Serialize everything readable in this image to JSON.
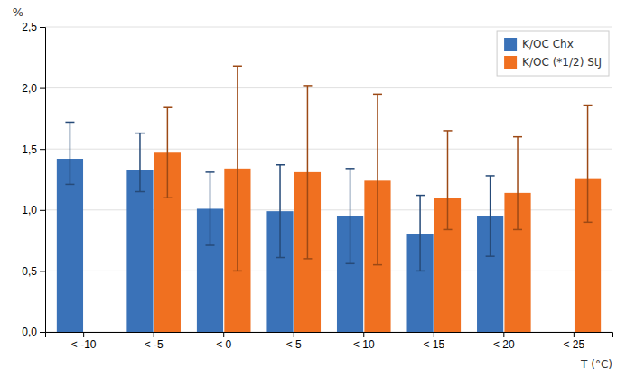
{
  "chart_data": {
    "type": "bar",
    "categories": [
      "< -10",
      "< -5",
      "< 0",
      "< 5",
      "< 10",
      "< 15",
      "< 20",
      "< 25"
    ],
    "series": [
      {
        "name": "K/OC Chx",
        "color": "#3a72b8",
        "values": [
          1.42,
          1.33,
          1.01,
          0.99,
          0.95,
          0.8,
          0.95,
          null
        ],
        "err_lower": [
          0.21,
          0.18,
          0.3,
          0.38,
          0.39,
          0.3,
          0.33,
          0
        ],
        "err_upper": [
          0.3,
          0.3,
          0.3,
          0.38,
          0.39,
          0.32,
          0.33,
          0
        ]
      },
      {
        "name": "K/OC (*1/2) StJ",
        "color": "#f07020",
        "values": [
          null,
          1.47,
          1.34,
          1.31,
          1.24,
          1.1,
          1.14,
          1.26
        ],
        "err_lower": [
          0,
          0.37,
          0.84,
          0.71,
          0.69,
          0.26,
          0.3,
          0.36
        ],
        "err_upper": [
          0,
          0.37,
          0.84,
          0.71,
          0.71,
          0.55,
          0.46,
          0.6
        ]
      }
    ],
    "ylim": [
      0,
      2.5
    ],
    "yticks": [
      {
        "value": 0.0,
        "label": "0,0"
      },
      {
        "value": 0.5,
        "label": "0,5"
      },
      {
        "value": 1.0,
        "label": "1,0"
      },
      {
        "value": 1.5,
        "label": "1,5"
      },
      {
        "value": 2.0,
        "label": "2,0"
      },
      {
        "value": 2.5,
        "label": "2,5"
      }
    ],
    "ylabel": "%",
    "xlabel": "T (°C)",
    "grid": true,
    "legend": "upper right"
  }
}
